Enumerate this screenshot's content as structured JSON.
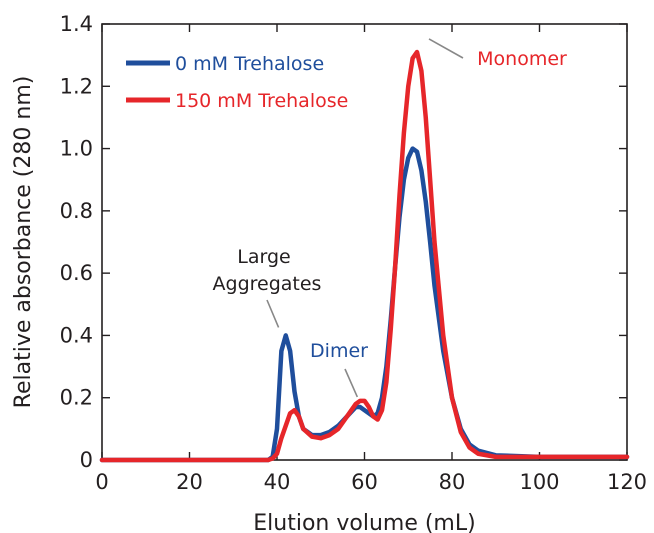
{
  "chart_data": {
    "type": "line",
    "xlabel": "Elution volume (mL)",
    "ylabel": "Relative absorbance (280 nm)",
    "xlim": [
      0,
      120
    ],
    "ylim": [
      0,
      1.4
    ],
    "xticks": [
      0,
      20,
      40,
      60,
      80,
      100,
      120
    ],
    "xtick_labels": [
      "0",
      "20",
      "40",
      "60",
      "80",
      "100",
      "120"
    ],
    "yticks": [
      0,
      0.2,
      0.4,
      0.6,
      0.8,
      1.0,
      1.2,
      1.4
    ],
    "ytick_labels": [
      "0",
      "0.2",
      "0.4",
      "0.6",
      "0.8",
      "1.0",
      "1.2",
      "1.4"
    ],
    "grid": false,
    "legend_position": "top-left",
    "series": [
      {
        "name": "0 mM Trehalose",
        "color": "#1f4e9c",
        "x": [
          0,
          38,
          39,
          40,
          41,
          42,
          43,
          44,
          45,
          46,
          48,
          50,
          52,
          54,
          56,
          58,
          59,
          60,
          61,
          62,
          63,
          64,
          65,
          66,
          67,
          68,
          69,
          70,
          71,
          72,
          73,
          74,
          75,
          76,
          78,
          80,
          82,
          84,
          86,
          90,
          100,
          120
        ],
        "y": [
          0.0,
          0.0,
          0.01,
          0.1,
          0.35,
          0.4,
          0.35,
          0.22,
          0.14,
          0.1,
          0.08,
          0.08,
          0.09,
          0.11,
          0.14,
          0.17,
          0.17,
          0.16,
          0.15,
          0.14,
          0.15,
          0.2,
          0.3,
          0.45,
          0.62,
          0.78,
          0.9,
          0.97,
          1.0,
          0.99,
          0.93,
          0.83,
          0.7,
          0.56,
          0.35,
          0.2,
          0.1,
          0.05,
          0.03,
          0.015,
          0.01,
          0.01
        ]
      },
      {
        "name": "150 mM Trehalose",
        "color": "#e6262a",
        "x": [
          0,
          38,
          39,
          40,
          41,
          42,
          43,
          44,
          45,
          46,
          48,
          50,
          52,
          54,
          56,
          58,
          59,
          60,
          61,
          62,
          63,
          64,
          65,
          66,
          67,
          68,
          69,
          70,
          71,
          72,
          73,
          74,
          75,
          76,
          78,
          80,
          82,
          84,
          86,
          90,
          100,
          120
        ],
        "y": [
          0.0,
          0.0,
          0.005,
          0.02,
          0.07,
          0.11,
          0.15,
          0.16,
          0.14,
          0.1,
          0.075,
          0.07,
          0.08,
          0.1,
          0.14,
          0.18,
          0.19,
          0.19,
          0.17,
          0.14,
          0.13,
          0.16,
          0.25,
          0.42,
          0.62,
          0.85,
          1.05,
          1.2,
          1.29,
          1.31,
          1.25,
          1.1,
          0.9,
          0.7,
          0.4,
          0.2,
          0.09,
          0.04,
          0.02,
          0.01,
          0.01,
          0.01
        ]
      }
    ],
    "annotations": [
      {
        "lines": [
          "Large",
          "Aggregates"
        ],
        "color": "#231f20",
        "points_to": [
          41.5,
          0.4
        ]
      },
      {
        "lines": [
          "Dimer"
        ],
        "color": "#1f4e9c",
        "points_to": [
          59.5,
          0.18
        ]
      },
      {
        "lines": [
          "Monomer"
        ],
        "color": "#e6262a",
        "points_to": [
          72,
          1.32
        ]
      }
    ]
  }
}
